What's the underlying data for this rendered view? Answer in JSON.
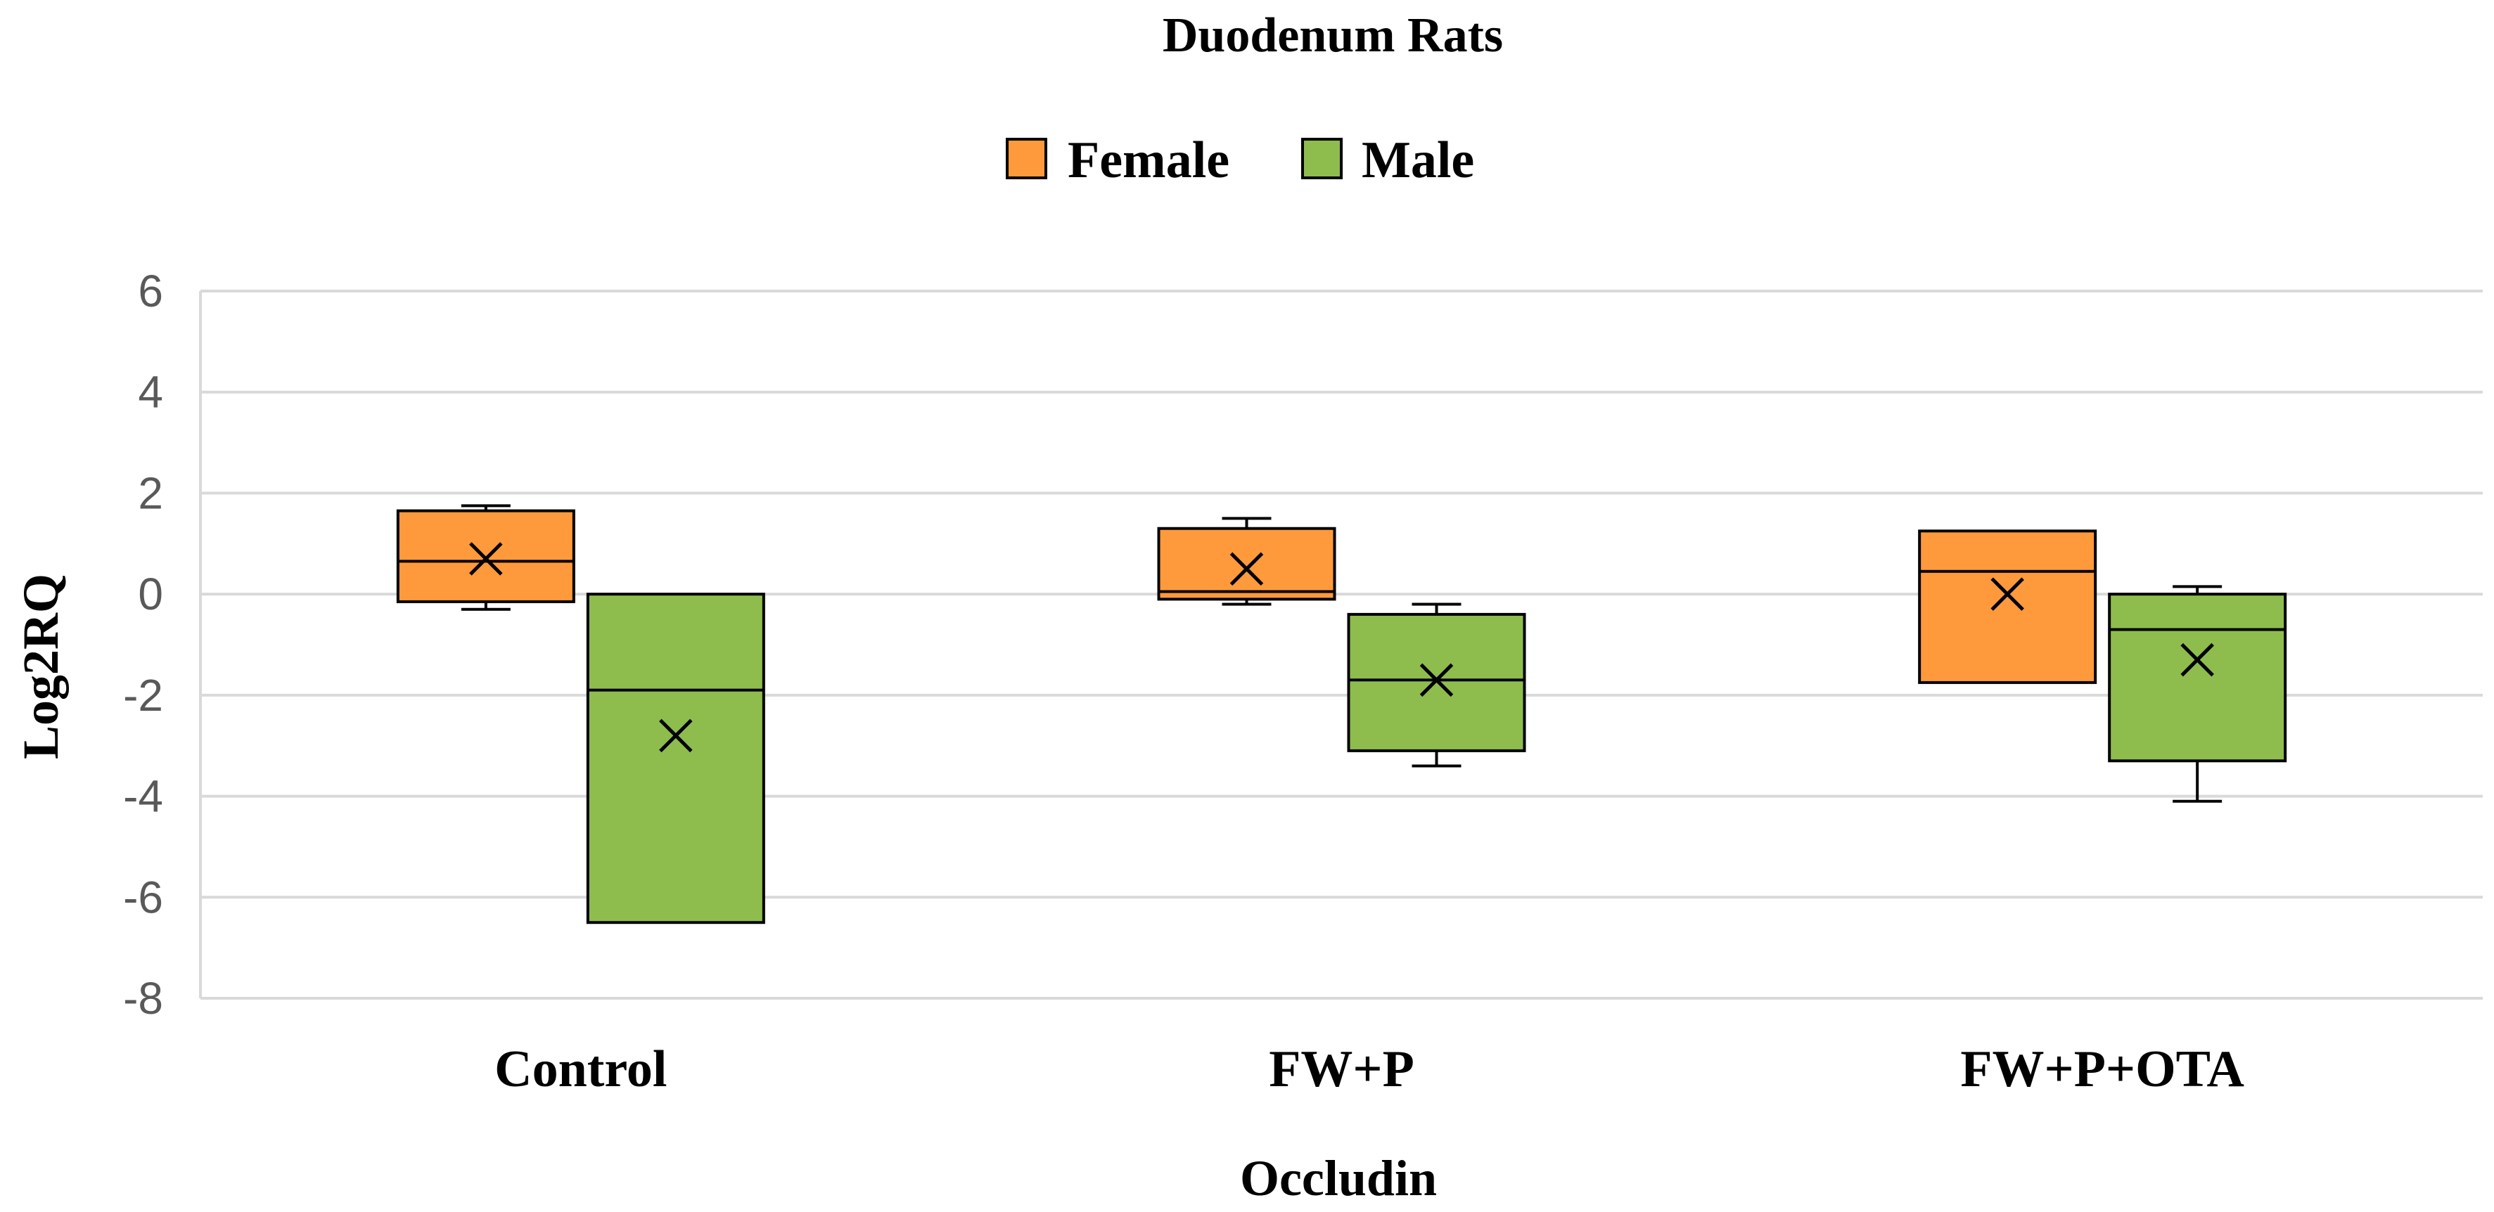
{
  "chart_data": {
    "type": "boxplot",
    "title": "Duodenum Rats",
    "xlabel": "Occludin",
    "ylabel": "Log2RQ",
    "ylim": [
      -8,
      6
    ],
    "ytick_step": 2,
    "y_ticks": [
      "6",
      "4",
      "2",
      "0",
      "-2",
      "-4",
      "-6",
      "-8"
    ],
    "grid": true,
    "legend_position": "top-center",
    "categories": [
      "Control",
      "FW+P",
      "FW+P+OTA"
    ],
    "series": [
      {
        "name": "Female",
        "color": "#FF9A3C",
        "boxes": [
          {
            "whisker_min": -0.3,
            "q1": -0.15,
            "median": 0.65,
            "q3": 1.65,
            "whisker_max": 1.75,
            "mean": 0.7
          },
          {
            "whisker_min": -0.2,
            "q1": -0.1,
            "median": 0.05,
            "q3": 1.3,
            "whisker_max": 1.5,
            "mean": 0.5
          },
          {
            "whisker_min": -1.75,
            "q1": -1.75,
            "median": 0.45,
            "q3": 1.25,
            "whisker_max": 1.25,
            "mean": 0.0
          }
        ]
      },
      {
        "name": "Male",
        "color": "#8EBD4E",
        "boxes": [
          {
            "whisker_min": -6.5,
            "q1": -6.5,
            "median": -1.9,
            "q3": 0.0,
            "whisker_max": 0.0,
            "mean": -2.8
          },
          {
            "whisker_min": -3.4,
            "q1": -3.1,
            "median": -1.7,
            "q3": -0.4,
            "whisker_max": -0.2,
            "mean": -1.7
          },
          {
            "whisker_min": -4.1,
            "q1": -3.3,
            "median": -0.7,
            "q3": 0.0,
            "whisker_max": 0.15,
            "mean": -1.3
          }
        ]
      }
    ]
  }
}
